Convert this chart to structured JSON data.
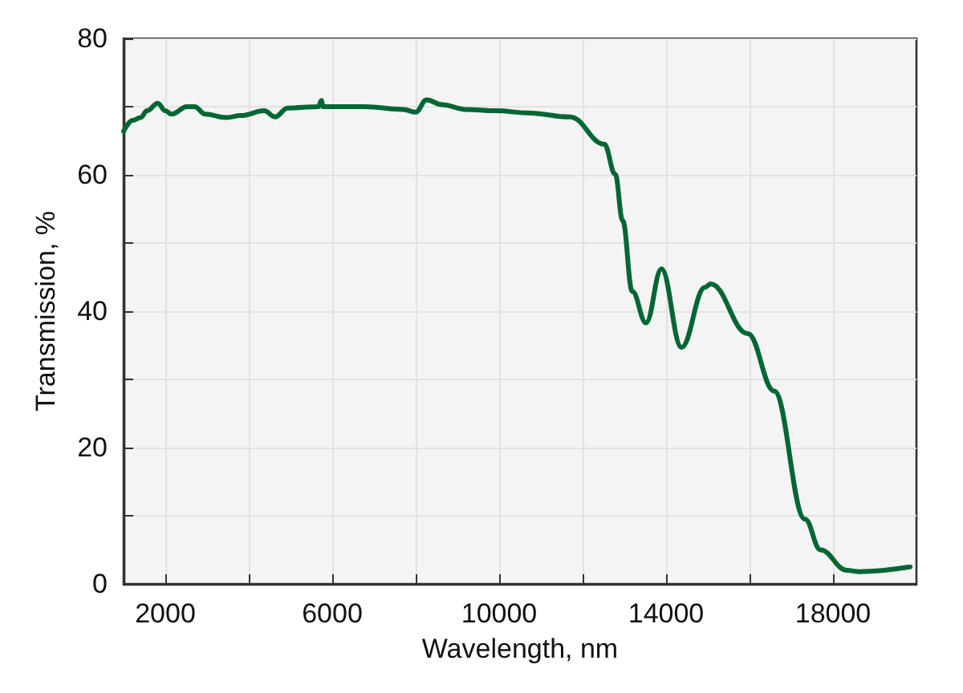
{
  "chart_data": {
    "type": "line",
    "xlabel": "Wavelength, nm",
    "ylabel": "Transmission, %",
    "xlim": [
      1000,
      20000
    ],
    "xticks": [
      {
        "value": 2000,
        "label": "2000"
      },
      {
        "value": 4000,
        "label": null
      },
      {
        "value": 6000,
        "label": "6000"
      },
      {
        "value": 8000,
        "label": null
      },
      {
        "value": 10000,
        "label": "10000"
      },
      {
        "value": 12000,
        "label": null
      },
      {
        "value": 14000,
        "label": "14000"
      },
      {
        "value": 16000,
        "label": null
      },
      {
        "value": 18000,
        "label": "18000"
      }
    ],
    "ylim": [
      0,
      80
    ],
    "yticks": [
      0,
      {
        "value": 10,
        "label": null
      },
      20,
      {
        "value": 30,
        "label": null
      },
      40,
      {
        "value": 50,
        "label": null
      },
      60,
      {
        "value": 70,
        "label": null
      },
      80
    ],
    "grid": true,
    "marker": "none",
    "line_style": "solid",
    "series": [
      {
        "color": "#006633",
        "x": [
          1000,
          1220,
          1410,
          1560,
          1820,
          2000,
          2150,
          2520,
          2700,
          2960,
          3440,
          3820,
          4370,
          4630,
          4930,
          5670,
          5740,
          5780,
          6780,
          7700,
          8000,
          8260,
          8630,
          9190,
          9930,
          10670,
          11700,
          12520,
          12780,
          12960,
          13190,
          13520,
          13890,
          14370,
          14930,
          15070,
          15960,
          16590,
          17330,
          17700,
          18330,
          18630,
          19850
        ],
        "values": [
          66.4,
          68,
          68.4,
          69.4,
          70.5,
          69.4,
          68.9,
          70,
          70,
          68.9,
          68.4,
          68.7,
          69.4,
          68.5,
          69.8,
          70,
          70.9,
          70,
          70,
          69.6,
          69.2,
          71,
          70.3,
          69.6,
          69.4,
          69.1,
          68.5,
          64.5,
          60.1,
          53.3,
          42.9,
          38.3,
          46.2,
          34.7,
          43.5,
          44,
          36.7,
          28.3,
          9.5,
          5,
          2,
          1.8,
          2.5
        ]
      }
    ]
  }
}
